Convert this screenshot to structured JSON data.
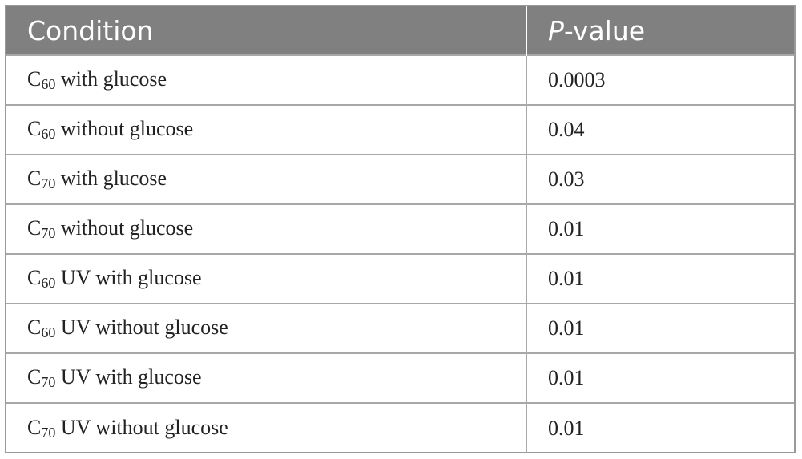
{
  "table": {
    "headers": {
      "condition": "Condition",
      "pvalue_italic": "P",
      "pvalue_rest": "-value"
    },
    "rows": [
      {
        "base": "C",
        "sub": "60",
        "label": " with glucose",
        "pvalue": "0.0003"
      },
      {
        "base": "C",
        "sub": "60",
        "label": " without glucose",
        "pvalue": "0.04"
      },
      {
        "base": "C",
        "sub": "70",
        "label": " with glucose",
        "pvalue": "0.03"
      },
      {
        "base": "C",
        "sub": "70",
        "label": " without glucose",
        "pvalue": "0.01"
      },
      {
        "base": "C",
        "sub": "60",
        "label": " UV with glucose",
        "pvalue": "0.01"
      },
      {
        "base": "C",
        "sub": "60",
        "label": " UV without glucose",
        "pvalue": "0.01"
      },
      {
        "base": "C",
        "sub": "70",
        "label": " UV with glucose",
        "pvalue": "0.01"
      },
      {
        "base": "C",
        "sub": "70",
        "label": " UV without glucose",
        "pvalue": "0.01"
      }
    ]
  }
}
